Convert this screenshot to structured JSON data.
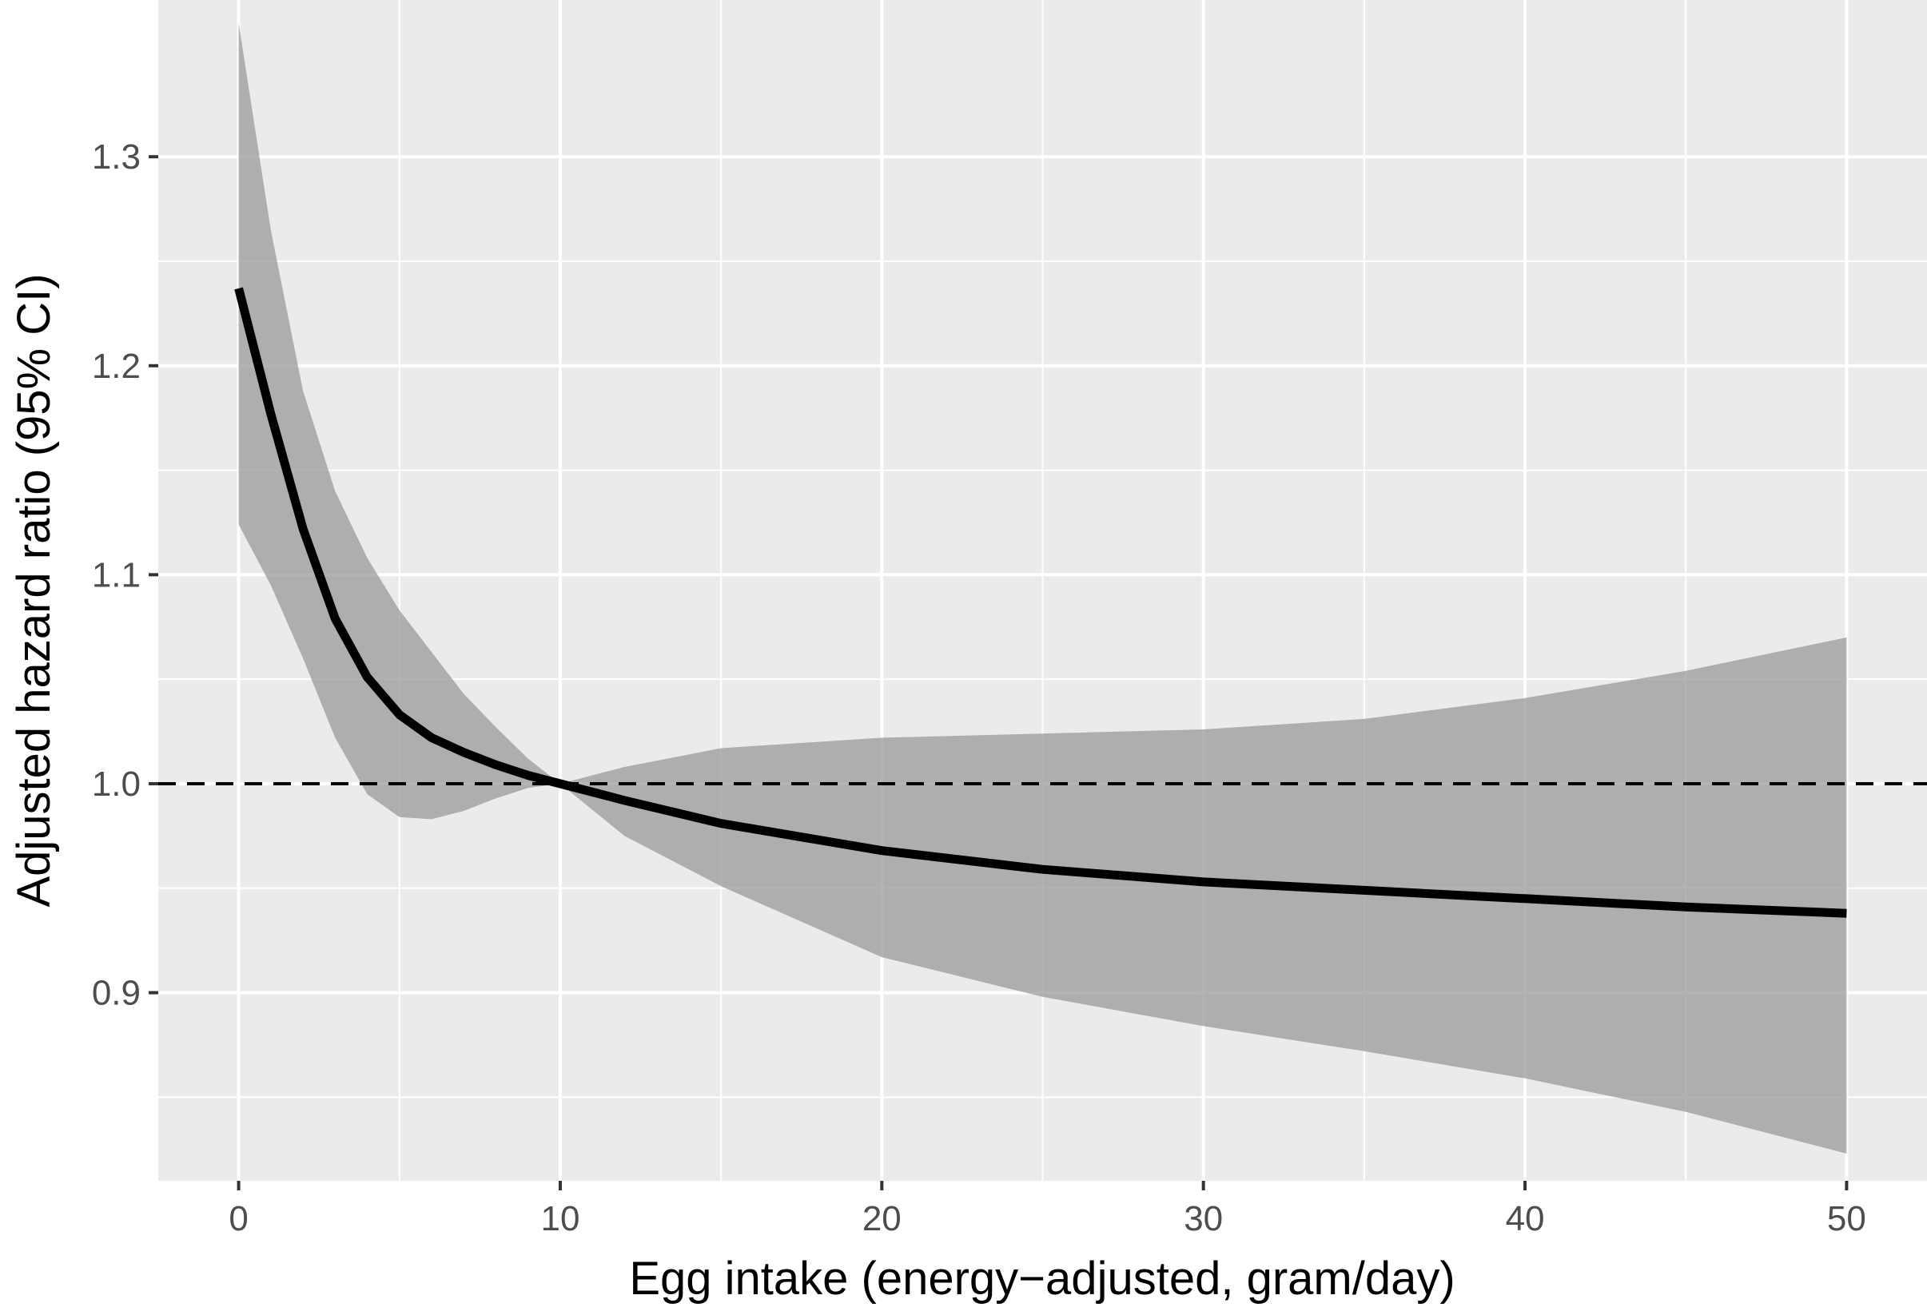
{
  "chart_data": {
    "type": "line",
    "title": "",
    "xlabel": "Egg intake (energy−adjusted, gram/day)",
    "ylabel": "Adjusted hazard ratio (95% CI)",
    "xlim": [
      -2.5,
      52.5
    ],
    "ylim": [
      0.81,
      1.375
    ],
    "x_ticks": [
      0,
      10,
      20,
      30,
      40,
      50
    ],
    "x_tick_labels": [
      "0",
      "10",
      "20",
      "30",
      "40",
      "50"
    ],
    "y_ticks": [
      0.9,
      1.0,
      1.1,
      1.2,
      1.3
    ],
    "y_tick_labels": [
      "0.9",
      "1.0",
      "1.1",
      "1.2",
      "1.3"
    ],
    "grid": true,
    "reference_line": {
      "y": 1.0,
      "style": "dashed"
    },
    "series": [
      {
        "type": "line",
        "x": [
          0,
          1,
          2,
          3,
          4,
          5,
          6,
          7,
          8,
          9,
          10,
          12,
          15,
          20,
          25,
          30,
          35,
          40,
          45,
          50
        ],
        "y": [
          1.237,
          1.177,
          1.122,
          1.079,
          1.051,
          1.033,
          1.022,
          1.015,
          1.009,
          1.004,
          1.0,
          0.992,
          0.981,
          0.968,
          0.959,
          0.953,
          0.949,
          0.945,
          0.941,
          0.938
        ]
      },
      {
        "type": "confidence_band",
        "x": [
          0,
          1,
          2,
          3,
          4,
          5,
          6,
          7,
          8,
          9,
          10,
          12,
          15,
          20,
          25,
          30,
          35,
          40,
          45,
          50
        ],
        "lower": [
          1.124,
          1.095,
          1.06,
          1.022,
          0.995,
          0.984,
          0.983,
          0.987,
          0.993,
          0.998,
          1.0,
          0.975,
          0.951,
          0.917,
          0.898,
          0.884,
          0.872,
          0.859,
          0.843,
          0.823
        ],
        "upper": [
          1.364,
          1.265,
          1.188,
          1.14,
          1.108,
          1.083,
          1.063,
          1.043,
          1.027,
          1.012,
          1.0,
          1.008,
          1.017,
          1.022,
          1.024,
          1.026,
          1.031,
          1.041,
          1.054,
          1.07
        ]
      }
    ],
    "colors": {
      "panel_background": "#ebebeb",
      "grid_major": "#ffffff",
      "band_fill": "#999999",
      "line": "#000000",
      "reference_line": "#000000",
      "tick_text": "#4d4d4d",
      "axis_title": "#000000"
    }
  }
}
